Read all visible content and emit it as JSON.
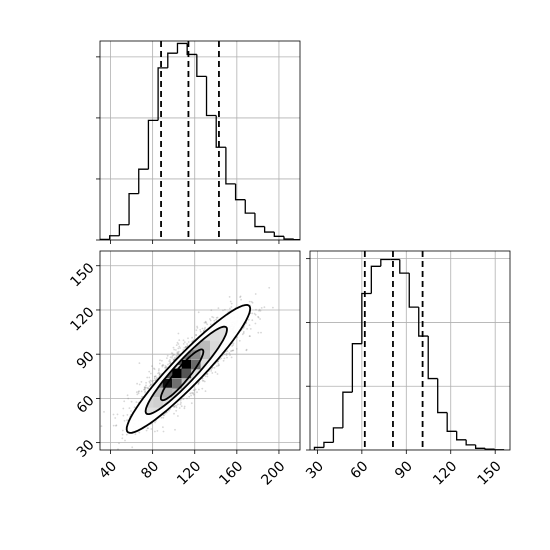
{
  "colors": {
    "line": "#000000",
    "grid": "#b0b0b0",
    "scatter": "#8c8c8c",
    "frame": "#000000"
  },
  "chart_data": [
    {
      "type": "histogram",
      "panel": "top-left marginal",
      "grid": true,
      "xlim": [
        30,
        220
      ],
      "ylim": [
        0,
        0.0163
      ],
      "bin_edges": [
        30,
        39.2,
        48.4,
        57.6,
        66.8,
        76,
        85.2,
        94.4,
        103.6,
        112.8,
        122,
        131.2,
        140.4,
        149.6,
        158.8,
        168,
        177.2,
        186.4,
        195.6,
        204.8,
        214,
        223.2
      ],
      "values": [
        5e-05,
        0.00035,
        0.00125,
        0.0038,
        0.0058,
        0.0098,
        0.0141,
        0.0153,
        0.0161,
        0.0152,
        0.0134,
        0.0102,
        0.0076,
        0.0046,
        0.0033,
        0.0022,
        0.0011,
        0.00065,
        0.0003,
        8e-05,
        3e-05
      ],
      "quantile_lines": [
        88,
        114,
        143
      ]
    },
    {
      "type": "histogram",
      "panel": "bottom-right marginal",
      "grid": true,
      "xlim": [
        25,
        160
      ],
      "ylim": [
        0,
        0.0234
      ],
      "x_ticks": [
        "30",
        "60",
        "90",
        "120",
        "150"
      ],
      "bin_edges": [
        28,
        34.4,
        40.8,
        47.2,
        53.6,
        60,
        66.4,
        72.8,
        79.2,
        85.6,
        92,
        98.4,
        104.8,
        111.2,
        117.6,
        124,
        130.4,
        136.8,
        143.2,
        149.6,
        156
      ],
      "values": [
        0.0003,
        0.0009,
        0.0026,
        0.0068,
        0.0125,
        0.0184,
        0.0216,
        0.0224,
        0.0224,
        0.0208,
        0.0168,
        0.0134,
        0.0084,
        0.0044,
        0.0022,
        0.0012,
        0.0006,
        0.0002,
        0.0001,
        3e-05
      ],
      "quantile_lines": [
        62,
        81,
        101
      ]
    },
    {
      "type": "scatter",
      "panel": "bottom-left 2D density",
      "grid": true,
      "xlim": [
        30,
        220
      ],
      "ylim": [
        25,
        160
      ],
      "x_ticks": [
        "40",
        "80",
        "120",
        "160",
        "200"
      ],
      "y_ticks": [
        "30",
        "60",
        "90",
        "120",
        "150"
      ],
      "mean": [
        115,
        82
      ],
      "correlation": 0.86,
      "std": [
        24,
        17
      ],
      "contour_levels": [
        {
          "level": "outer",
          "center": [
            114,
            80
          ],
          "semi_axes": [
            72,
            12
          ],
          "angle_deg": 36
        },
        {
          "level": "middle",
          "center": [
            112,
            79
          ],
          "semi_axes": [
            48,
            8.5
          ],
          "angle_deg": 37
        },
        {
          "level": "inner",
          "center": [
            108,
            76
          ],
          "semi_axes": [
            26,
            5.5
          ],
          "angle_deg": 40
        }
      ],
      "density_cells": [
        {
          "x": 103,
          "y": 77,
          "shade": "#000000"
        },
        {
          "x": 112,
          "y": 83,
          "shade": "#000000"
        },
        {
          "x": 94,
          "y": 70,
          "shade": "#111111"
        },
        {
          "x": 103,
          "y": 86,
          "shade": "#555555"
        },
        {
          "x": 94,
          "y": 77,
          "shade": "#5a5a5a"
        },
        {
          "x": 112,
          "y": 77,
          "shade": "#555555"
        },
        {
          "x": 121,
          "y": 83,
          "shade": "#6a6a6a"
        },
        {
          "x": 85,
          "y": 70,
          "shade": "#7a7a7a"
        },
        {
          "x": 103,
          "y": 70,
          "shade": "#6f6f6f"
        },
        {
          "x": 121,
          "y": 90,
          "shade": "#8a8a8a"
        },
        {
          "x": 112,
          "y": 90,
          "shade": "#7c7c7c"
        },
        {
          "x": 130,
          "y": 90,
          "shade": "#c2c2c2"
        },
        {
          "x": 130,
          "y": 96,
          "shade": "#bbbbbb"
        },
        {
          "x": 121,
          "y": 96,
          "shade": "#b5b5b5"
        },
        {
          "x": 94,
          "y": 64,
          "shade": "#b0b0b0"
        },
        {
          "x": 85,
          "y": 64,
          "shade": "#bdbdbd"
        },
        {
          "x": 76,
          "y": 64,
          "shade": "#cccccc"
        },
        {
          "x": 139,
          "y": 96,
          "shade": "#d9d9d9"
        },
        {
          "x": 139,
          "y": 102,
          "shade": "#dddddd"
        },
        {
          "x": 76,
          "y": 57,
          "shade": "#d6d6d6"
        },
        {
          "x": 85,
          "y": 57,
          "shade": "#d0d0d0"
        }
      ]
    }
  ]
}
